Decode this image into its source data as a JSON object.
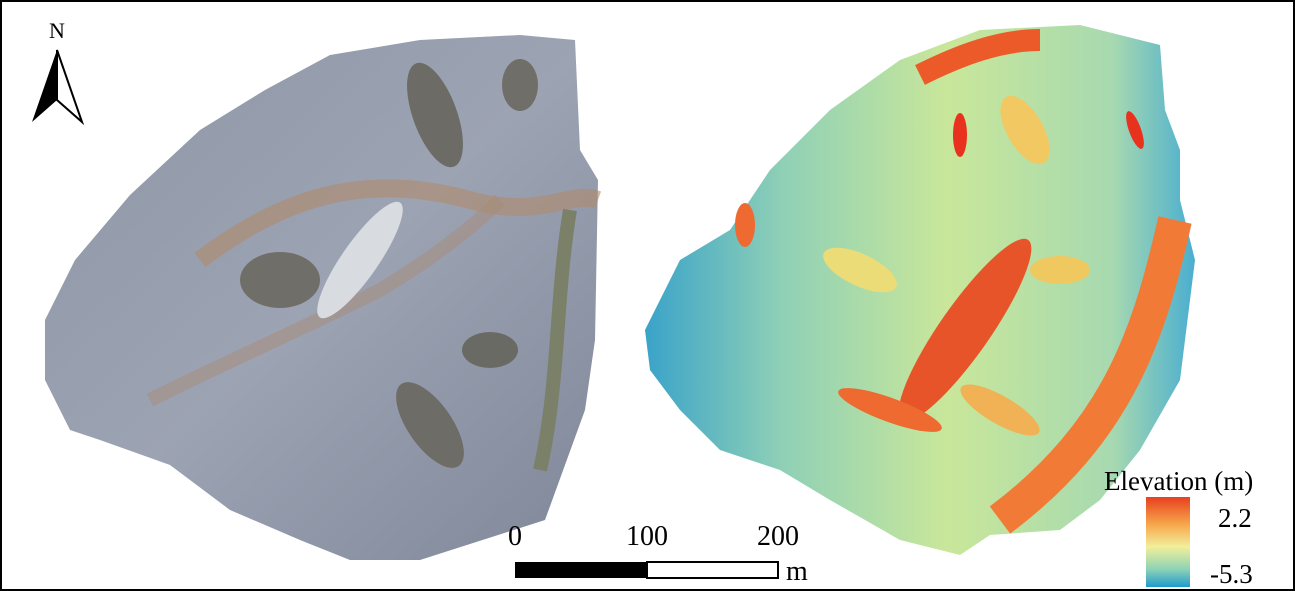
{
  "north_arrow": {
    "label": "N"
  },
  "scale_bar": {
    "ticks": [
      0,
      100,
      200
    ],
    "unit": "m"
  },
  "legend": {
    "title": "Elevation (m)",
    "max": 2.2,
    "min": -5.3
  }
}
